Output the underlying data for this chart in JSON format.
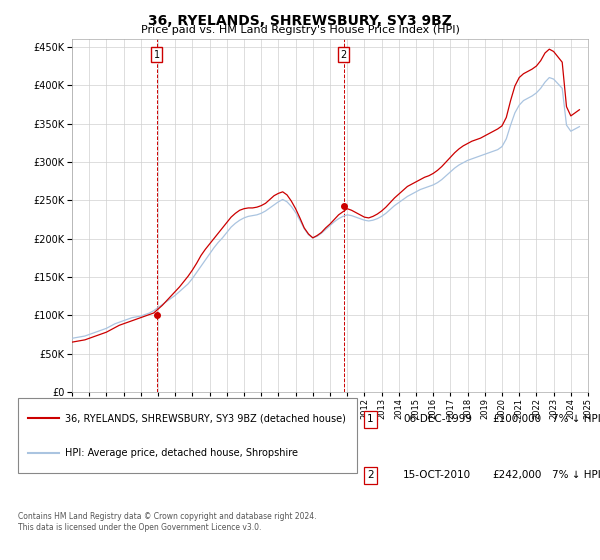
{
  "title": "36, RYELANDS, SHREWSBURY, SY3 9BZ",
  "subtitle": "Price paid vs. HM Land Registry's House Price Index (HPI)",
  "footer": "Contains HM Land Registry data © Crown copyright and database right 2024.\nThis data is licensed under the Open Government Licence v3.0.",
  "legend_line1": "36, RYELANDS, SHREWSBURY, SY3 9BZ (detached house)",
  "legend_line2": "HPI: Average price, detached house, Shropshire",
  "annotation1_label": "1",
  "annotation1_date": "06-DEC-1999",
  "annotation1_price": "£100,000",
  "annotation1_hpi": "7% ↓ HPI",
  "annotation2_label": "2",
  "annotation2_date": "15-OCT-2010",
  "annotation2_price": "£242,000",
  "annotation2_hpi": "7% ↓ HPI",
  "hpi_color": "#aac4e0",
  "price_color": "#cc0000",
  "annotation_box_color": "#cc0000",
  "ylim": [
    0,
    460000
  ],
  "yticks": [
    0,
    50000,
    100000,
    150000,
    200000,
    250000,
    300000,
    350000,
    400000,
    450000
  ],
  "background_color": "#ffffff",
  "grid_color": "#d0d0d0",
  "sale1_year": 1999.92,
  "sale1_price": 100000,
  "sale2_year": 2010.79,
  "sale2_price": 242000,
  "hpi_years": [
    1995,
    1995.25,
    1995.5,
    1995.75,
    1996,
    1996.25,
    1996.5,
    1996.75,
    1997,
    1997.25,
    1997.5,
    1997.75,
    1998,
    1998.25,
    1998.5,
    1998.75,
    1999,
    1999.25,
    1999.5,
    1999.75,
    2000,
    2000.25,
    2000.5,
    2000.75,
    2001,
    2001.25,
    2001.5,
    2001.75,
    2002,
    2002.25,
    2002.5,
    2002.75,
    2003,
    2003.25,
    2003.5,
    2003.75,
    2004,
    2004.25,
    2004.5,
    2004.75,
    2005,
    2005.25,
    2005.5,
    2005.75,
    2006,
    2006.25,
    2006.5,
    2006.75,
    2007,
    2007.25,
    2007.5,
    2007.75,
    2008,
    2008.25,
    2008.5,
    2008.75,
    2009,
    2009.25,
    2009.5,
    2009.75,
    2010,
    2010.25,
    2010.5,
    2010.75,
    2011,
    2011.25,
    2011.5,
    2011.75,
    2012,
    2012.25,
    2012.5,
    2012.75,
    2013,
    2013.25,
    2013.5,
    2013.75,
    2014,
    2014.25,
    2014.5,
    2014.75,
    2015,
    2015.25,
    2015.5,
    2015.75,
    2016,
    2016.25,
    2016.5,
    2016.75,
    2017,
    2017.25,
    2017.5,
    2017.75,
    2018,
    2018.25,
    2018.5,
    2018.75,
    2019,
    2019.25,
    2019.5,
    2019.75,
    2020,
    2020.25,
    2020.5,
    2020.75,
    2021,
    2021.25,
    2021.5,
    2021.75,
    2022,
    2022.25,
    2022.5,
    2022.75,
    2023,
    2023.25,
    2023.5,
    2023.75,
    2024,
    2024.25,
    2024.5
  ],
  "hpi_values": [
    70000,
    71000,
    72000,
    73000,
    75000,
    77000,
    79000,
    81000,
    83000,
    86000,
    89000,
    91000,
    93000,
    95000,
    97000,
    98000,
    99000,
    101000,
    103000,
    106000,
    110000,
    114000,
    118000,
    122000,
    126000,
    131000,
    136000,
    141000,
    148000,
    156000,
    164000,
    172000,
    180000,
    188000,
    195000,
    201000,
    208000,
    215000,
    220000,
    224000,
    227000,
    229000,
    230000,
    231000,
    233000,
    236000,
    240000,
    244000,
    248000,
    251000,
    248000,
    242000,
    234000,
    224000,
    213000,
    205000,
    201000,
    203000,
    207000,
    212000,
    217000,
    222000,
    226000,
    229000,
    231000,
    230000,
    228000,
    226000,
    224000,
    223000,
    224000,
    226000,
    229000,
    233000,
    238000,
    243000,
    247000,
    251000,
    255000,
    258000,
    261000,
    264000,
    266000,
    268000,
    270000,
    273000,
    277000,
    282000,
    287000,
    292000,
    296000,
    299000,
    302000,
    304000,
    306000,
    308000,
    310000,
    312000,
    314000,
    316000,
    320000,
    330000,
    348000,
    364000,
    374000,
    380000,
    383000,
    386000,
    390000,
    396000,
    404000,
    410000,
    408000,
    402000,
    396000,
    348000,
    340000,
    343000,
    346000
  ],
  "price_line_years": [
    1995,
    1995.25,
    1995.5,
    1995.75,
    1996,
    1996.25,
    1996.5,
    1996.75,
    1997,
    1997.25,
    1997.5,
    1997.75,
    1998,
    1998.25,
    1998.5,
    1998.75,
    1999,
    1999.25,
    1999.5,
    1999.75,
    2000,
    2000.25,
    2000.5,
    2000.75,
    2001,
    2001.25,
    2001.5,
    2001.75,
    2002,
    2002.25,
    2002.5,
    2002.75,
    2003,
    2003.25,
    2003.5,
    2003.75,
    2004,
    2004.25,
    2004.5,
    2004.75,
    2005,
    2005.25,
    2005.5,
    2005.75,
    2006,
    2006.25,
    2006.5,
    2006.75,
    2007,
    2007.25,
    2007.5,
    2007.75,
    2008,
    2008.25,
    2008.5,
    2008.75,
    2009,
    2009.25,
    2009.5,
    2009.75,
    2010,
    2010.25,
    2010.5,
    2010.75,
    2011,
    2011.25,
    2011.5,
    2011.75,
    2012,
    2012.25,
    2012.5,
    2012.75,
    2013,
    2013.25,
    2013.5,
    2013.75,
    2014,
    2014.25,
    2014.5,
    2014.75,
    2015,
    2015.25,
    2015.5,
    2015.75,
    2016,
    2016.25,
    2016.5,
    2016.75,
    2017,
    2017.25,
    2017.5,
    2017.75,
    2018,
    2018.25,
    2018.5,
    2018.75,
    2019,
    2019.25,
    2019.5,
    2019.75,
    2020,
    2020.25,
    2020.5,
    2020.75,
    2021,
    2021.25,
    2021.5,
    2021.75,
    2022,
    2022.25,
    2022.5,
    2022.75,
    2023,
    2023.25,
    2023.5,
    2023.75,
    2024,
    2024.25,
    2024.5
  ],
  "price_line_values": [
    65000,
    66000,
    67000,
    68000,
    70000,
    72000,
    74000,
    76000,
    78000,
    81000,
    84000,
    87000,
    89000,
    91000,
    93000,
    95000,
    97000,
    99000,
    101000,
    103000,
    108000,
    113000,
    119000,
    125000,
    131000,
    137000,
    144000,
    151000,
    159000,
    168000,
    178000,
    186000,
    193000,
    200000,
    207000,
    214000,
    221000,
    228000,
    233000,
    237000,
    239000,
    240000,
    240000,
    241000,
    243000,
    246000,
    251000,
    256000,
    259000,
    261000,
    257000,
    249000,
    239000,
    227000,
    214000,
    206000,
    201000,
    204000,
    208000,
    214000,
    219000,
    225000,
    231000,
    235000,
    239000,
    237000,
    234000,
    231000,
    228000,
    227000,
    229000,
    232000,
    236000,
    241000,
    247000,
    253000,
    258000,
    263000,
    268000,
    271000,
    274000,
    277000,
    280000,
    282000,
    285000,
    289000,
    294000,
    300000,
    306000,
    312000,
    317000,
    321000,
    324000,
    327000,
    329000,
    331000,
    334000,
    337000,
    340000,
    343000,
    347000,
    358000,
    380000,
    399000,
    410000,
    415000,
    418000,
    421000,
    425000,
    432000,
    442000,
    447000,
    444000,
    437000,
    430000,
    372000,
    360000,
    364000,
    368000
  ],
  "xtick_years": [
    1995,
    1996,
    1997,
    1998,
    1999,
    2000,
    2001,
    2002,
    2003,
    2004,
    2005,
    2006,
    2007,
    2008,
    2009,
    2010,
    2011,
    2012,
    2013,
    2014,
    2015,
    2016,
    2017,
    2018,
    2019,
    2020,
    2021,
    2022,
    2023,
    2024,
    2025
  ]
}
